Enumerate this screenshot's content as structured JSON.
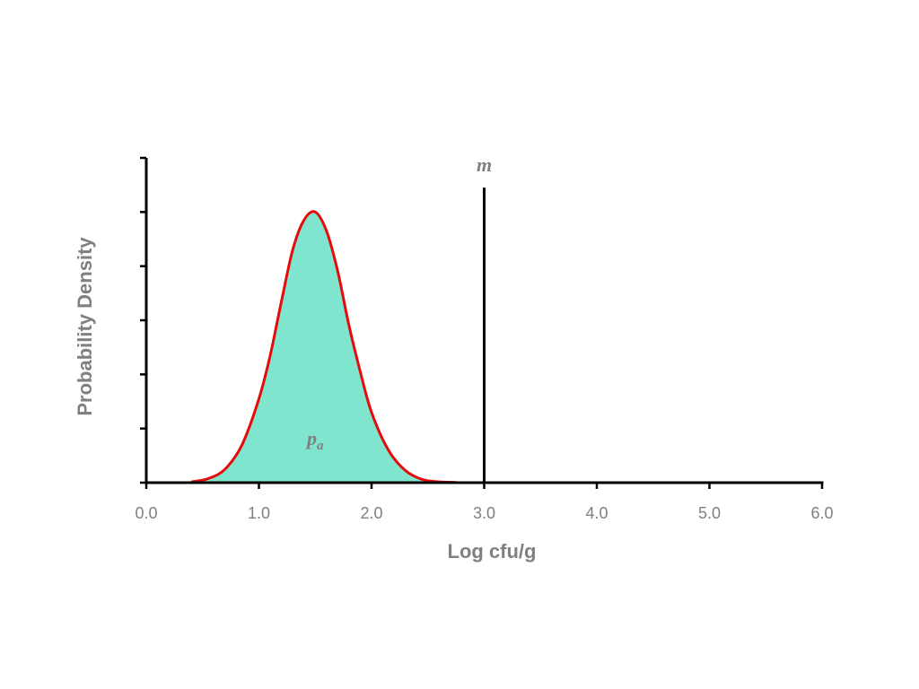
{
  "chart_data": {
    "type": "area",
    "xlabel": "Log cfu/g",
    "ylabel": "Probability Density",
    "xlim": [
      0,
      6
    ],
    "ylim": [
      0,
      1.2
    ],
    "x_ticks": [
      "0.0",
      "1.0",
      "2.0",
      "3.0",
      "4.0",
      "5.0",
      "6.0"
    ],
    "y_tick_count": 6,
    "y_tick_labels_shown": false,
    "grid": false,
    "series": [
      {
        "x": [
          0.4,
          0.55,
          0.7,
          0.85,
          1.0,
          1.1,
          1.2,
          1.3,
          1.4,
          1.5,
          1.6,
          1.7,
          1.8,
          1.9,
          2.0,
          2.15,
          2.3,
          2.45,
          2.6,
          2.75
        ],
        "y": [
          0.003,
          0.015,
          0.05,
          0.14,
          0.31,
          0.47,
          0.67,
          0.86,
          0.97,
          1.0,
          0.93,
          0.78,
          0.58,
          0.41,
          0.26,
          0.12,
          0.045,
          0.012,
          0.003,
          0.001
        ],
        "style": "filled curve"
      }
    ],
    "annotations": [
      {
        "text": "m",
        "sub": "",
        "x": 3.0,
        "y": 1.15,
        "kind": "vertical-line-label"
      },
      {
        "text": "p",
        "sub": "a",
        "x": 1.5,
        "y": 0.14,
        "kind": "area-label"
      }
    ],
    "vline": {
      "x": 3.0,
      "y_top": 1.09
    },
    "colors": {
      "fill": "#80e5cf",
      "curve": "#e50b0b",
      "axis": "#000000",
      "text": "#808080"
    }
  }
}
